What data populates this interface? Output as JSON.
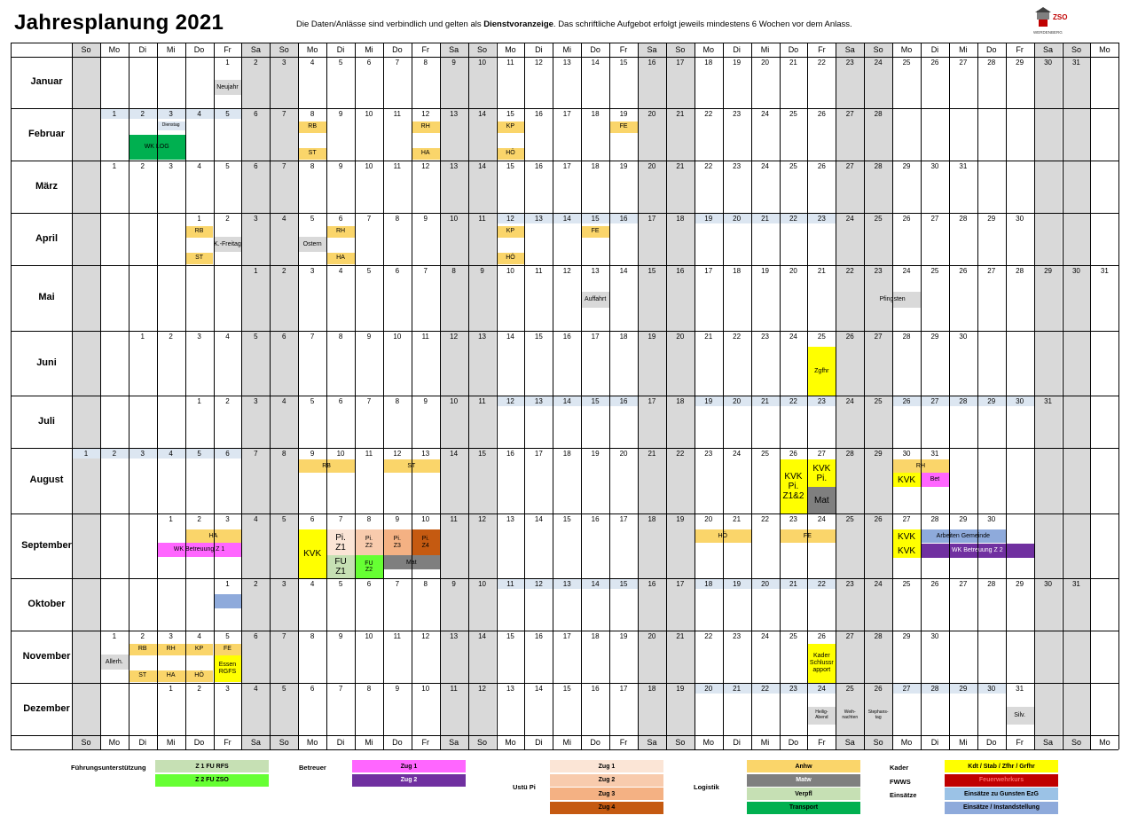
{
  "header": {
    "title": "Jahresplanung 2021",
    "notice_pre": "Die Daten/Anlässe sind verbindlich und gelten als ",
    "notice_bold": "Dienstvoranzeige",
    "notice_post": ". Das schriftliche Aufgebot erfolgt jeweils mindestens 6 Wochen vor dem Anlass.",
    "logo_text_1": "ZSO",
    "logo_text_2": "WERDENBERG"
  },
  "weekdays": [
    "So",
    "Mo",
    "Di",
    "Mi",
    "Do",
    "Fr",
    "Sa"
  ],
  "colors": {
    "weekend": "#d9d9d9",
    "holiday": "#d9d9d9",
    "week_band": "#dce6f1",
    "yellow_event": "#fad56a",
    "kader": "#ffff00",
    "matw": "#7f7f7f",
    "zug1_betreuer": "#ff66ff",
    "zug2_betreuer": "#7030a0",
    "pi1": "#fbe5d6",
    "pi2": "#f8cbad",
    "pi3": "#f4b183",
    "pi4": "#c55a11",
    "fu_rfs": "#c6e0b4",
    "fu_zso": "#66ff33",
    "verpfl": "#c6e0b4",
    "transport": "#00b050",
    "fwws": "#c00000",
    "einsatz_ezg": "#9bc2e6",
    "einsatz_inst": "#8eaadb",
    "wk_log": "#00b050"
  },
  "months": [
    {
      "name": "Januar",
      "offset": 5,
      "days": 31
    },
    {
      "name": "Februar",
      "offset": 1,
      "days": 28
    },
    {
      "name": "März",
      "offset": 1,
      "days": 31
    },
    {
      "name": "April",
      "offset": 4,
      "days": 30
    },
    {
      "name": "Mai",
      "offset": 6,
      "days": 31
    },
    {
      "name": "Juni",
      "offset": 2,
      "days": 30
    },
    {
      "name": "Juli",
      "offset": 4,
      "days": 31
    },
    {
      "name": "August",
      "offset": 0,
      "days": 31
    },
    {
      "name": "September",
      "offset": 3,
      "days": 30
    },
    {
      "name": "Oktober",
      "offset": 5,
      "days": 31
    },
    {
      "name": "November",
      "offset": 1,
      "days": 30
    },
    {
      "name": "Dezember",
      "offset": 3,
      "days": 31
    }
  ],
  "bands": [
    {
      "month": 1,
      "from": 1,
      "to": 5
    },
    {
      "month": 3,
      "from": 12,
      "to": 16
    },
    {
      "month": 3,
      "from": 19,
      "to": 23
    },
    {
      "month": 6,
      "from": 12,
      "to": 16
    },
    {
      "month": 6,
      "from": 19,
      "to": 23
    },
    {
      "month": 6,
      "from": 26,
      "to": 30
    },
    {
      "month": 7,
      "from": 1,
      "to": 6
    },
    {
      "month": 9,
      "from": 11,
      "to": 15
    },
    {
      "month": 9,
      "from": 18,
      "to": 22
    },
    {
      "month": 11,
      "from": 20,
      "to": 24
    },
    {
      "month": 11,
      "from": 27,
      "to": 30
    }
  ],
  "events": [
    {
      "m": 0,
      "d": 1,
      "span": 1,
      "top": 0.45,
      "h": 0.3,
      "text": "Neujahr",
      "color": "#d9d9d9"
    },
    {
      "m": 1,
      "d": 3,
      "span": 1,
      "top": 0.25,
      "h": 0.18,
      "text": "Dienstag",
      "color": "#dce6f1",
      "small": true
    },
    {
      "m": 1,
      "d": 2,
      "span": 2,
      "top": 0.5,
      "h": 0.48,
      "text": "WK LOG",
      "color": "#00b050"
    },
    {
      "m": 1,
      "d": 8,
      "span": 1,
      "top": 0.25,
      "h": 0.22,
      "text": "RB",
      "color": "#fad56a"
    },
    {
      "m": 1,
      "d": 8,
      "span": 1,
      "top": 0.76,
      "h": 0.22,
      "text": "ST",
      "color": "#fad56a"
    },
    {
      "m": 1,
      "d": 12,
      "span": 1,
      "top": 0.25,
      "h": 0.22,
      "text": "RH",
      "color": "#fad56a"
    },
    {
      "m": 1,
      "d": 12,
      "span": 1,
      "top": 0.76,
      "h": 0.22,
      "text": "HA",
      "color": "#fad56a"
    },
    {
      "m": 1,
      "d": 15,
      "span": 1,
      "top": 0.25,
      "h": 0.22,
      "text": "KP",
      "color": "#fad56a"
    },
    {
      "m": 1,
      "d": 15,
      "span": 1,
      "top": 0.76,
      "h": 0.22,
      "text": "HÖ",
      "color": "#fad56a"
    },
    {
      "m": 1,
      "d": 19,
      "span": 1,
      "top": 0.25,
      "h": 0.22,
      "text": "FE",
      "color": "#fad56a"
    },
    {
      "m": 3,
      "d": 1,
      "span": 1,
      "top": 0.25,
      "h": 0.22,
      "text": "RB",
      "color": "#fad56a"
    },
    {
      "m": 3,
      "d": 1,
      "span": 1,
      "top": 0.76,
      "h": 0.22,
      "text": "ST",
      "color": "#fad56a"
    },
    {
      "m": 3,
      "d": 2,
      "span": 1,
      "top": 0.45,
      "h": 0.3,
      "text": "K.-Freitag",
      "color": "#d9d9d9"
    },
    {
      "m": 3,
      "d": 5,
      "span": 1,
      "top": 0.45,
      "h": 0.3,
      "text": "Ostern",
      "color": "#d9d9d9"
    },
    {
      "m": 3,
      "d": 6,
      "span": 1,
      "top": 0.25,
      "h": 0.22,
      "text": "RH",
      "color": "#fad56a"
    },
    {
      "m": 3,
      "d": 6,
      "span": 1,
      "top": 0.76,
      "h": 0.22,
      "text": "HA",
      "color": "#fad56a"
    },
    {
      "m": 3,
      "d": 12,
      "span": 1,
      "top": 0.25,
      "h": 0.22,
      "text": "KP",
      "color": "#fad56a"
    },
    {
      "m": 3,
      "d": 12,
      "span": 1,
      "top": 0.76,
      "h": 0.22,
      "text": "HÖ",
      "color": "#fad56a"
    },
    {
      "m": 3,
      "d": 15,
      "span": 1,
      "top": 0.25,
      "h": 0.22,
      "text": "FE",
      "color": "#fad56a"
    },
    {
      "m": 4,
      "d": 13,
      "span": 1,
      "top": 0.4,
      "h": 0.25,
      "text": "Auffahrt",
      "color": "#d9d9d9"
    },
    {
      "m": 4,
      "d": 23,
      "span": 2,
      "top": 0.4,
      "h": 0.25,
      "text": "Pfingsten",
      "color": "#d9d9d9"
    },
    {
      "m": 5,
      "d": 25,
      "span": 1,
      "top": 0.25,
      "h": 0.75,
      "text": "Zgfhr",
      "color": "#ffff00"
    },
    {
      "m": 7,
      "d": 9,
      "span": 2,
      "top": 0.18,
      "h": 0.2,
      "text": "RB",
      "color": "#fad56a"
    },
    {
      "m": 7,
      "d": 12,
      "span": 2,
      "top": 0.18,
      "h": 0.2,
      "text": "ST",
      "color": "#fad56a"
    },
    {
      "m": 7,
      "d": 26,
      "span": 1,
      "top": 0.18,
      "h": 0.82,
      "text": "KVK\nPi.\nZ1&2",
      "color": "#ffff00",
      "big": true
    },
    {
      "m": 7,
      "d": 27,
      "span": 1,
      "top": 0.18,
      "h": 0.42,
      "text": "KVK\nPi.",
      "color": "#ffff00",
      "big": true
    },
    {
      "m": 7,
      "d": 27,
      "span": 1,
      "top": 0.6,
      "h": 0.4,
      "text": "Mat",
      "color": "#7f7f7f",
      "big": true
    },
    {
      "m": 7,
      "d": 30,
      "span": 2,
      "top": 0.18,
      "h": 0.2,
      "text": "RH",
      "color": "#fad56a"
    },
    {
      "m": 7,
      "d": 30,
      "span": 1,
      "top": 0.38,
      "h": 0.22,
      "text": "KVK",
      "color": "#ffff00",
      "big": true
    },
    {
      "m": 7,
      "d": 31,
      "span": 1,
      "top": 0.38,
      "h": 0.22,
      "text": "Bet",
      "color": "#ff66ff"
    },
    {
      "m": 8,
      "d": 2,
      "span": 2,
      "top": 0.25,
      "h": 0.2,
      "text": "HA",
      "color": "#fad56a"
    },
    {
      "m": 8,
      "d": 1,
      "span": 3,
      "top": 0.45,
      "h": 0.22,
      "text": "WK Betreuung Z 1",
      "color": "#ff66ff"
    },
    {
      "m": 8,
      "d": 6,
      "span": 1,
      "top": 0.25,
      "h": 0.75,
      "text": "KVK",
      "color": "#ffff00",
      "big": true
    },
    {
      "m": 8,
      "d": 7,
      "span": 1,
      "top": 0.25,
      "h": 0.4,
      "text": "Pi.\nZ1",
      "color": "#fbe5d6",
      "big": true
    },
    {
      "m": 8,
      "d": 7,
      "span": 1,
      "top": 0.65,
      "h": 0.35,
      "text": "FU\nZ1",
      "color": "#c6e0b4",
      "big": true
    },
    {
      "m": 8,
      "d": 8,
      "span": 1,
      "top": 0.25,
      "h": 0.4,
      "text": "Pi.\nZ2",
      "color": "#f8cbad"
    },
    {
      "m": 8,
      "d": 8,
      "span": 1,
      "top": 0.65,
      "h": 0.35,
      "text": "FU\nZ2",
      "color": "#66ff33"
    },
    {
      "m": 8,
      "d": 9,
      "span": 1,
      "top": 0.25,
      "h": 0.4,
      "text": "Pi.\nZ3",
      "color": "#f4b183"
    },
    {
      "m": 8,
      "d": 10,
      "span": 1,
      "top": 0.25,
      "h": 0.4,
      "text": "Pi.\nZ4",
      "color": "#c55a11"
    },
    {
      "m": 8,
      "d": 9,
      "span": 2,
      "top": 0.65,
      "h": 0.22,
      "text": "Mat",
      "color": "#7f7f7f"
    },
    {
      "m": 8,
      "d": 20,
      "span": 2,
      "top": 0.25,
      "h": 0.2,
      "text": "HÖ",
      "color": "#fad56a"
    },
    {
      "m": 8,
      "d": 23,
      "span": 2,
      "top": 0.25,
      "h": 0.2,
      "text": "FE",
      "color": "#fad56a"
    },
    {
      "m": 8,
      "d": 27,
      "span": 1,
      "top": 0.25,
      "h": 0.22,
      "text": "KVK",
      "color": "#ffff00",
      "big": true
    },
    {
      "m": 8,
      "d": 28,
      "span": 3,
      "top": 0.25,
      "h": 0.2,
      "text": "Arbeiten Gemeinde",
      "color": "#8eaadb"
    },
    {
      "m": 8,
      "d": 27,
      "span": 1,
      "top": 0.47,
      "h": 0.22,
      "text": "KVK",
      "color": "#ffff00",
      "big": true
    },
    {
      "m": 8,
      "d": 28,
      "span": 4,
      "top": 0.47,
      "h": 0.22,
      "text": "WK Betreuung Z 2",
      "color": "#7030a0",
      "white": true
    },
    {
      "m": 9,
      "d": 1,
      "span": 1,
      "top": 0.3,
      "h": 0.28,
      "text": "",
      "color": "#8eaadb"
    },
    {
      "m": 10,
      "d": 1,
      "span": 1,
      "top": 0.45,
      "h": 0.3,
      "text": "Allerh.",
      "color": "#d9d9d9"
    },
    {
      "m": 10,
      "d": 2,
      "span": 1,
      "top": 0.25,
      "h": 0.22,
      "text": "RB",
      "color": "#fad56a"
    },
    {
      "m": 10,
      "d": 2,
      "span": 1,
      "top": 0.76,
      "h": 0.22,
      "text": "ST",
      "color": "#fad56a"
    },
    {
      "m": 10,
      "d": 3,
      "span": 1,
      "top": 0.25,
      "h": 0.22,
      "text": "RH",
      "color": "#fad56a"
    },
    {
      "m": 10,
      "d": 3,
      "span": 1,
      "top": 0.76,
      "h": 0.22,
      "text": "HA",
      "color": "#fad56a"
    },
    {
      "m": 10,
      "d": 4,
      "span": 1,
      "top": 0.25,
      "h": 0.22,
      "text": "KP",
      "color": "#fad56a"
    },
    {
      "m": 10,
      "d": 4,
      "span": 1,
      "top": 0.76,
      "h": 0.22,
      "text": "HÖ",
      "color": "#fad56a"
    },
    {
      "m": 10,
      "d": 5,
      "span": 1,
      "top": 0.25,
      "h": 0.22,
      "text": "FE",
      "color": "#fad56a"
    },
    {
      "m": 10,
      "d": 5,
      "span": 1,
      "top": 0.47,
      "h": 0.51,
      "text": "Essen\nRGFS",
      "color": "#ffff00"
    },
    {
      "m": 10,
      "d": 26,
      "span": 1,
      "top": 0.25,
      "h": 0.75,
      "text": "Kader\nSchlussr\napport",
      "color": "#ffff00"
    },
    {
      "m": 11,
      "d": 24,
      "span": 1,
      "top": 0.45,
      "h": 0.35,
      "text": "Heilig-\nAbend",
      "color": "#d9d9d9",
      "small": true
    },
    {
      "m": 11,
      "d": 25,
      "span": 1,
      "top": 0.45,
      "h": 0.35,
      "text": "Weih-\nnachten",
      "color": "#d9d9d9",
      "small": true
    },
    {
      "m": 11,
      "d": 26,
      "span": 1,
      "top": 0.45,
      "h": 0.35,
      "text": "Stephans-\ntag",
      "color": "#d9d9d9",
      "small": true
    },
    {
      "m": 11,
      "d": 31,
      "span": 1,
      "top": 0.45,
      "h": 0.35,
      "text": "Silv.",
      "color": "#d9d9d9"
    }
  ],
  "legend": {
    "groups": [
      {
        "label": "Führungsunterstützung",
        "lx": 80,
        "ly": 861,
        "bx": 175,
        "bw": 128,
        "items": [
          {
            "text": "Z 1 FU RFS",
            "color": "#c6e0b4",
            "fg": "#000"
          },
          {
            "text": "Z 2 FU ZSO",
            "color": "#66ff33",
            "fg": "#000"
          }
        ]
      },
      {
        "label": "Betreuer",
        "lx": 337,
        "ly": 861,
        "bx": 397,
        "bw": 128,
        "items": [
          {
            "text": "Zug 1",
            "color": "#ff66ff",
            "fg": "#000"
          },
          {
            "text": "Zug 2",
            "color": "#7030a0",
            "fg": "#fff"
          }
        ]
      },
      {
        "label": "Ustü Pi",
        "lx": 578,
        "ly": 883,
        "bx": 620,
        "bw": 128,
        "items": [
          {
            "text": "Zug 1",
            "color": "#fbe5d6",
            "fg": "#000"
          },
          {
            "text": "Zug 2",
            "color": "#f8cbad",
            "fg": "#000"
          },
          {
            "text": "Zug 3",
            "color": "#f4b183",
            "fg": "#000"
          },
          {
            "text": "Zug 4",
            "color": "#c55a11",
            "fg": "#000"
          }
        ]
      },
      {
        "label": "Logistik",
        "lx": 782,
        "ly": 883,
        "bx": 842,
        "bw": 128,
        "items": [
          {
            "text": "Anhw",
            "color": "#fad56a",
            "fg": "#000"
          },
          {
            "text": "Matw",
            "color": "#7f7f7f",
            "fg": "#fff"
          },
          {
            "text": "Verpfl",
            "color": "#c6e0b4",
            "fg": "#000"
          },
          {
            "text": "Transport",
            "color": "#00b050",
            "fg": "#000"
          }
        ]
      },
      {
        "label": "Kader",
        "lx": 1003,
        "ly": 861,
        "bx": 1065,
        "bw": 128,
        "items": [
          {
            "text": "Kdt / Stab / Zfhr / Grfhr",
            "color": "#ffff00",
            "fg": "#000"
          }
        ]
      },
      {
        "label": "FWWS",
        "lx": 1003,
        "ly": 877,
        "bx": 1065,
        "bw": 128,
        "items": [
          {
            "text": "Feuerwehrkurs",
            "color": "#c00000",
            "fg": "#ff6666"
          }
        ],
        "offset": 1
      },
      {
        "label": "Einsätze",
        "lx": 1003,
        "ly": 892,
        "bx": 1065,
        "bw": 128,
        "items": [
          {
            "text": "Einsätze zu Gunsten EzG",
            "color": "#9bc2e6",
            "fg": "#000"
          },
          {
            "text": "Einsätze / Instandstellung",
            "color": "#8eaadb",
            "fg": "#000"
          }
        ],
        "offset": 2
      }
    ]
  }
}
